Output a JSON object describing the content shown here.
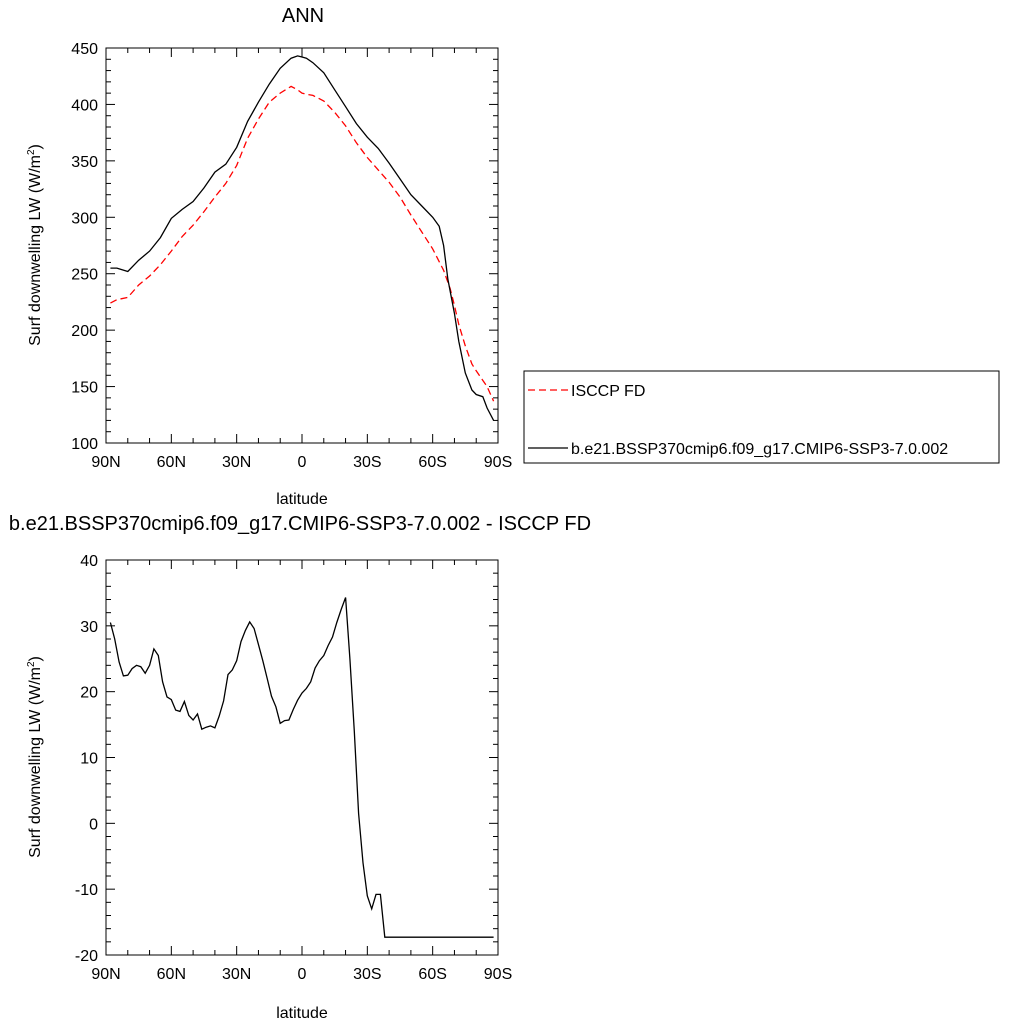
{
  "chart_data": [
    {
      "type": "line",
      "title": "ANN",
      "xlabel": "latitude",
      "ylabel": "Surf downwelling LW (W/m",
      "ylabel_sup": "2",
      "ylabel_close": ")",
      "xlim": [
        -90,
        90
      ],
      "ylim": [
        100,
        450
      ],
      "x_ticks": [
        -90,
        -60,
        -30,
        0,
        30,
        60,
        90
      ],
      "x_tick_labels": [
        "90N",
        "60N",
        "30N",
        "0",
        "30S",
        "60S",
        "90S"
      ],
      "y_ticks": [
        100,
        150,
        200,
        250,
        300,
        350,
        400,
        450
      ],
      "y_tick_labels": [
        "100",
        "150",
        "200",
        "250",
        "300",
        "350",
        "400",
        "450"
      ],
      "grid": false,
      "legend_position": "right",
      "series": [
        {
          "name": "ISCCP FD",
          "color": "#ff0000",
          "dash": "dashed",
          "x": [
            -88,
            -85,
            -80,
            -75,
            -70,
            -65,
            -60,
            -55,
            -50,
            -45,
            -40,
            -35,
            -30,
            -25,
            -20,
            -15,
            -10,
            -5,
            -2,
            0,
            2,
            5,
            10,
            15,
            20,
            25,
            30,
            35,
            40,
            45,
            50,
            55,
            60,
            65,
            68,
            70,
            72,
            75,
            78,
            80,
            85,
            88
          ],
          "y": [
            224,
            227,
            229,
            240,
            248,
            258,
            270,
            283,
            293,
            305,
            318,
            330,
            346,
            370,
            387,
            402,
            410,
            416,
            413,
            410,
            409,
            408,
            403,
            393,
            381,
            366,
            353,
            342,
            331,
            318,
            302,
            287,
            272,
            253,
            237,
            222,
            205,
            186,
            170,
            164,
            150,
            137
          ]
        },
        {
          "name": "b.e21.BSSP370cmip6.f09_g17.CMIP6-SSP3-7.0.002",
          "color": "#000000",
          "dash": "solid",
          "x": [
            -88,
            -85,
            -80,
            -75,
            -70,
            -65,
            -60,
            -55,
            -50,
            -45,
            -40,
            -35,
            -30,
            -25,
            -20,
            -15,
            -10,
            -5,
            -2,
            0,
            2,
            5,
            10,
            15,
            20,
            25,
            30,
            35,
            40,
            45,
            50,
            55,
            60,
            63,
            65,
            67,
            70,
            72,
            75,
            78,
            80,
            83,
            85,
            88
          ],
          "y": [
            255,
            255,
            252,
            262,
            270,
            282,
            299,
            307,
            314,
            326,
            340,
            347,
            362,
            385,
            402,
            418,
            432,
            441,
            443,
            442,
            441,
            437,
            428,
            413,
            398,
            383,
            371,
            361,
            348,
            334,
            320,
            310,
            300,
            292,
            275,
            245,
            215,
            190,
            162,
            147,
            143,
            141,
            131,
            120
          ]
        }
      ]
    },
    {
      "type": "line",
      "title": "b.e21.BSSP370cmip6.f09_g17.CMIP6-SSP3-7.0.002 - ISCCP FD",
      "xlabel": "latitude",
      "ylabel": "Surf downwelling LW (W/m",
      "ylabel_sup": "2",
      "ylabel_close": ")",
      "xlim": [
        -90,
        90
      ],
      "ylim": [
        -20,
        40
      ],
      "x_ticks": [
        -90,
        -60,
        -30,
        0,
        30,
        60,
        90
      ],
      "x_tick_labels": [
        "90N",
        "60N",
        "30N",
        "0",
        "30S",
        "60S",
        "90S"
      ],
      "y_ticks": [
        -20,
        -10,
        0,
        10,
        20,
        30,
        40
      ],
      "y_tick_labels": [
        "-20",
        "-10",
        "0",
        "10",
        "20",
        "30",
        "40"
      ],
      "grid": false,
      "series": [
        {
          "color": "#000000",
          "dash": "solid",
          "x": [
            -88,
            -86,
            -84,
            -82,
            -80,
            -78,
            -76,
            -74,
            -72,
            -70,
            -68,
            -66,
            -64,
            -62,
            -60,
            -58,
            -56,
            -54,
            -52,
            -50,
            -48,
            -46,
            -44,
            -42,
            -40,
            -38,
            -36,
            -34,
            -32,
            -30,
            -28,
            -26,
            -24,
            -22,
            -20,
            -18,
            -16,
            -14,
            -12,
            -10,
            -8,
            -6,
            -4,
            -2,
            0,
            2,
            4,
            6,
            8,
            10,
            12,
            14,
            16,
            18,
            20,
            22,
            24,
            26,
            28,
            30,
            32,
            34,
            36,
            38,
            40,
            42,
            44,
            46,
            48,
            50,
            52,
            54,
            56,
            58,
            60,
            62,
            64,
            66,
            68,
            70,
            72,
            74,
            76,
            78,
            80,
            82,
            84,
            86,
            88
          ],
          "y": [
            30.5,
            28,
            24.5,
            22.4,
            22.5,
            23.5,
            24,
            23.8,
            22.8,
            24,
            26.5,
            25.5,
            21.5,
            19.2,
            18.8,
            17.2,
            17,
            18.5,
            16.4,
            15.7,
            16.6,
            14.3,
            14.6,
            14.8,
            14.5,
            16.3,
            18.6,
            22.6,
            23.3,
            24.7,
            27.6,
            29.3,
            30.6,
            29.6,
            27.2,
            24.7,
            22,
            19.3,
            17.7,
            15.2,
            15.6,
            15.7,
            17.3,
            18.7,
            19.8,
            20.5,
            21.5,
            23.6,
            24.7,
            25.5,
            27,
            28.3,
            30.5,
            32.5,
            34.3,
            25,
            14,
            1.5,
            -6,
            -11,
            -13,
            -10.8,
            -10.8,
            -17.3,
            -17.3,
            -17.3,
            -17.3,
            -17.3,
            -17.3,
            -17.3,
            -17.3,
            -17.3,
            -17.3,
            -17.3,
            -17.3,
            -17.3,
            -17.3,
            -17.3,
            -17.3,
            -17.3,
            -17.3,
            -17.3,
            -17.3,
            -17.3,
            -17.3,
            -17.3,
            -17.3,
            -17.3,
            -17.3
          ]
        }
      ]
    }
  ]
}
